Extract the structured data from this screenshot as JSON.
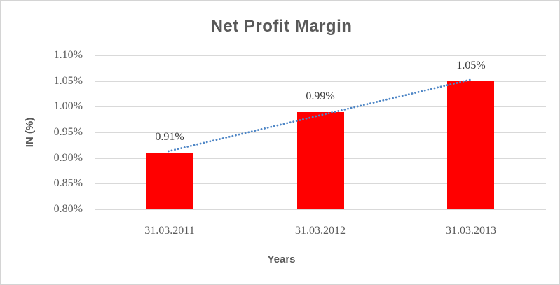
{
  "chart_data": {
    "type": "bar",
    "title": "Net Profit Margin",
    "xlabel": "Years",
    "ylabel": "IN (%)",
    "categories": [
      "31.03.2011",
      "31.03.2012",
      "31.03.2013"
    ],
    "values": [
      0.91,
      0.99,
      1.05
    ],
    "data_labels": [
      "0.91%",
      "0.99%",
      "1.05%"
    ],
    "ylim": [
      0.8,
      1.1
    ],
    "ytick_values": [
      1.1,
      1.05,
      1.0,
      0.95,
      0.9,
      0.85,
      0.8
    ],
    "ytick_labels": [
      "1.10%",
      "1.05%",
      "1.00%",
      "0.95%",
      "0.90%",
      "0.85%",
      "0.80%"
    ],
    "grid": true,
    "legend": "none",
    "trendline": {
      "type": "linear",
      "style": "dotted",
      "start_value": 0.9133,
      "end_value": 1.0533
    },
    "colors": {
      "bar": "#ff0000",
      "trendline": "#4e86c6",
      "gridline": "#d9d9d9",
      "title_text": "#595959",
      "axis_text": "#595959",
      "data_label_text": "#3b3b3b",
      "frame_border": "#d4d4d4"
    }
  }
}
